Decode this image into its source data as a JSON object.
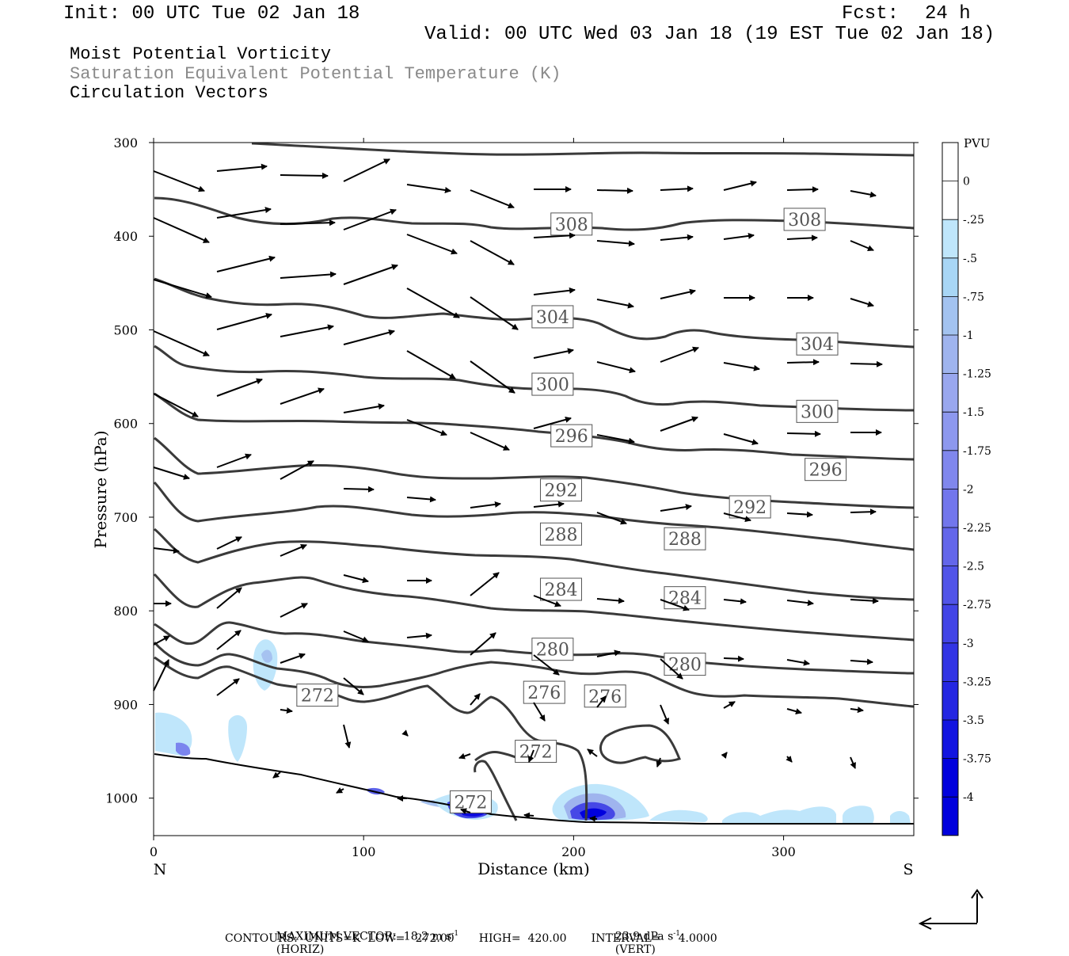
{
  "header": {
    "init": "Init: 00 UTC Tue 02 Jan 18",
    "fcst_label": "Fcst:",
    "fcst_value": "24 h",
    "valid": "Valid: 00 UTC Wed 03 Jan 18 (19 EST Tue 02 Jan 18)",
    "title_line1": "Moist Potential Vorticity",
    "title_line2": "Saturation Equivalent Potential Temperature (K)",
    "title_line3": "Circulation Vectors"
  },
  "chart_data": {
    "type": "cross-section",
    "x_axis": {
      "label": "Distance (km)",
      "range": [
        0,
        362
      ],
      "ticks": [
        0,
        100,
        200,
        300
      ],
      "end_labels": {
        "left": "N",
        "right": "S"
      }
    },
    "y_axis": {
      "label": "Pressure (hPa)",
      "range": [
        300,
        1040
      ],
      "ticks": [
        300,
        400,
        500,
        600,
        700,
        800,
        900,
        1000
      ],
      "reversed": true
    },
    "colorbar": {
      "title": "PVU",
      "labels": [
        "0",
        "-.25",
        "-.5",
        "-.75",
        "-1",
        "-1.25",
        "-1.5",
        "-1.75",
        "-2",
        "-2.25",
        "-2.5",
        "-2.75",
        "-3",
        "-3.25",
        "-3.5",
        "-3.75",
        "-4"
      ],
      "colors": [
        "#ffffff",
        "#ffffff",
        "#bfe6fb",
        "#a8d6f5",
        "#a3c3f0",
        "#9fb4ee",
        "#99a7ee",
        "#8d98ee",
        "#8087ed",
        "#7276ec",
        "#6366ea",
        "#5154e8",
        "#4244e6",
        "#3234e4",
        "#2426e2",
        "#1214e0",
        "#0000dd",
        "#0000dd"
      ]
    },
    "contour_labels": [
      {
        "text": "308",
        "x": 199,
        "p": 387
      },
      {
        "text": "308",
        "x": 310,
        "p": 382
      },
      {
        "text": "304",
        "x": 190,
        "p": 486
      },
      {
        "text": "304",
        "x": 316,
        "p": 515
      },
      {
        "text": "300",
        "x": 190,
        "p": 558
      },
      {
        "text": "300",
        "x": 316,
        "p": 587
      },
      {
        "text": "296",
        "x": 199,
        "p": 613
      },
      {
        "text": "296",
        "x": 320,
        "p": 649
      },
      {
        "text": "292",
        "x": 194,
        "p": 671
      },
      {
        "text": "292",
        "x": 284,
        "p": 689
      },
      {
        "text": "288",
        "x": 194,
        "p": 718
      },
      {
        "text": "288",
        "x": 253,
        "p": 723
      },
      {
        "text": "284",
        "x": 194,
        "p": 777
      },
      {
        "text": "284",
        "x": 253,
        "p": 786
      },
      {
        "text": "280",
        "x": 190,
        "p": 841
      },
      {
        "text": "280",
        "x": 253,
        "p": 857
      },
      {
        "text": "276",
        "x": 186,
        "p": 887
      },
      {
        "text": "276",
        "x": 215,
        "p": 891
      },
      {
        "text": "272",
        "x": 78,
        "p": 890
      },
      {
        "text": "272",
        "x": 182,
        "p": 950
      },
      {
        "text": "272",
        "x": 151,
        "p": 1004
      }
    ],
    "max_vector": "MAXIMUM VECTOR:  18.2 m s",
    "horiz": "(HORIZ)",
    "vert_value": "23.9 dPa s",
    "vert": "(VERT)",
    "contours": "CONTOURS:  UNITS=K  LOW=   272.00       HIGH=  420.00       INTERVAL=     4.0000",
    "superscript": "-1"
  }
}
